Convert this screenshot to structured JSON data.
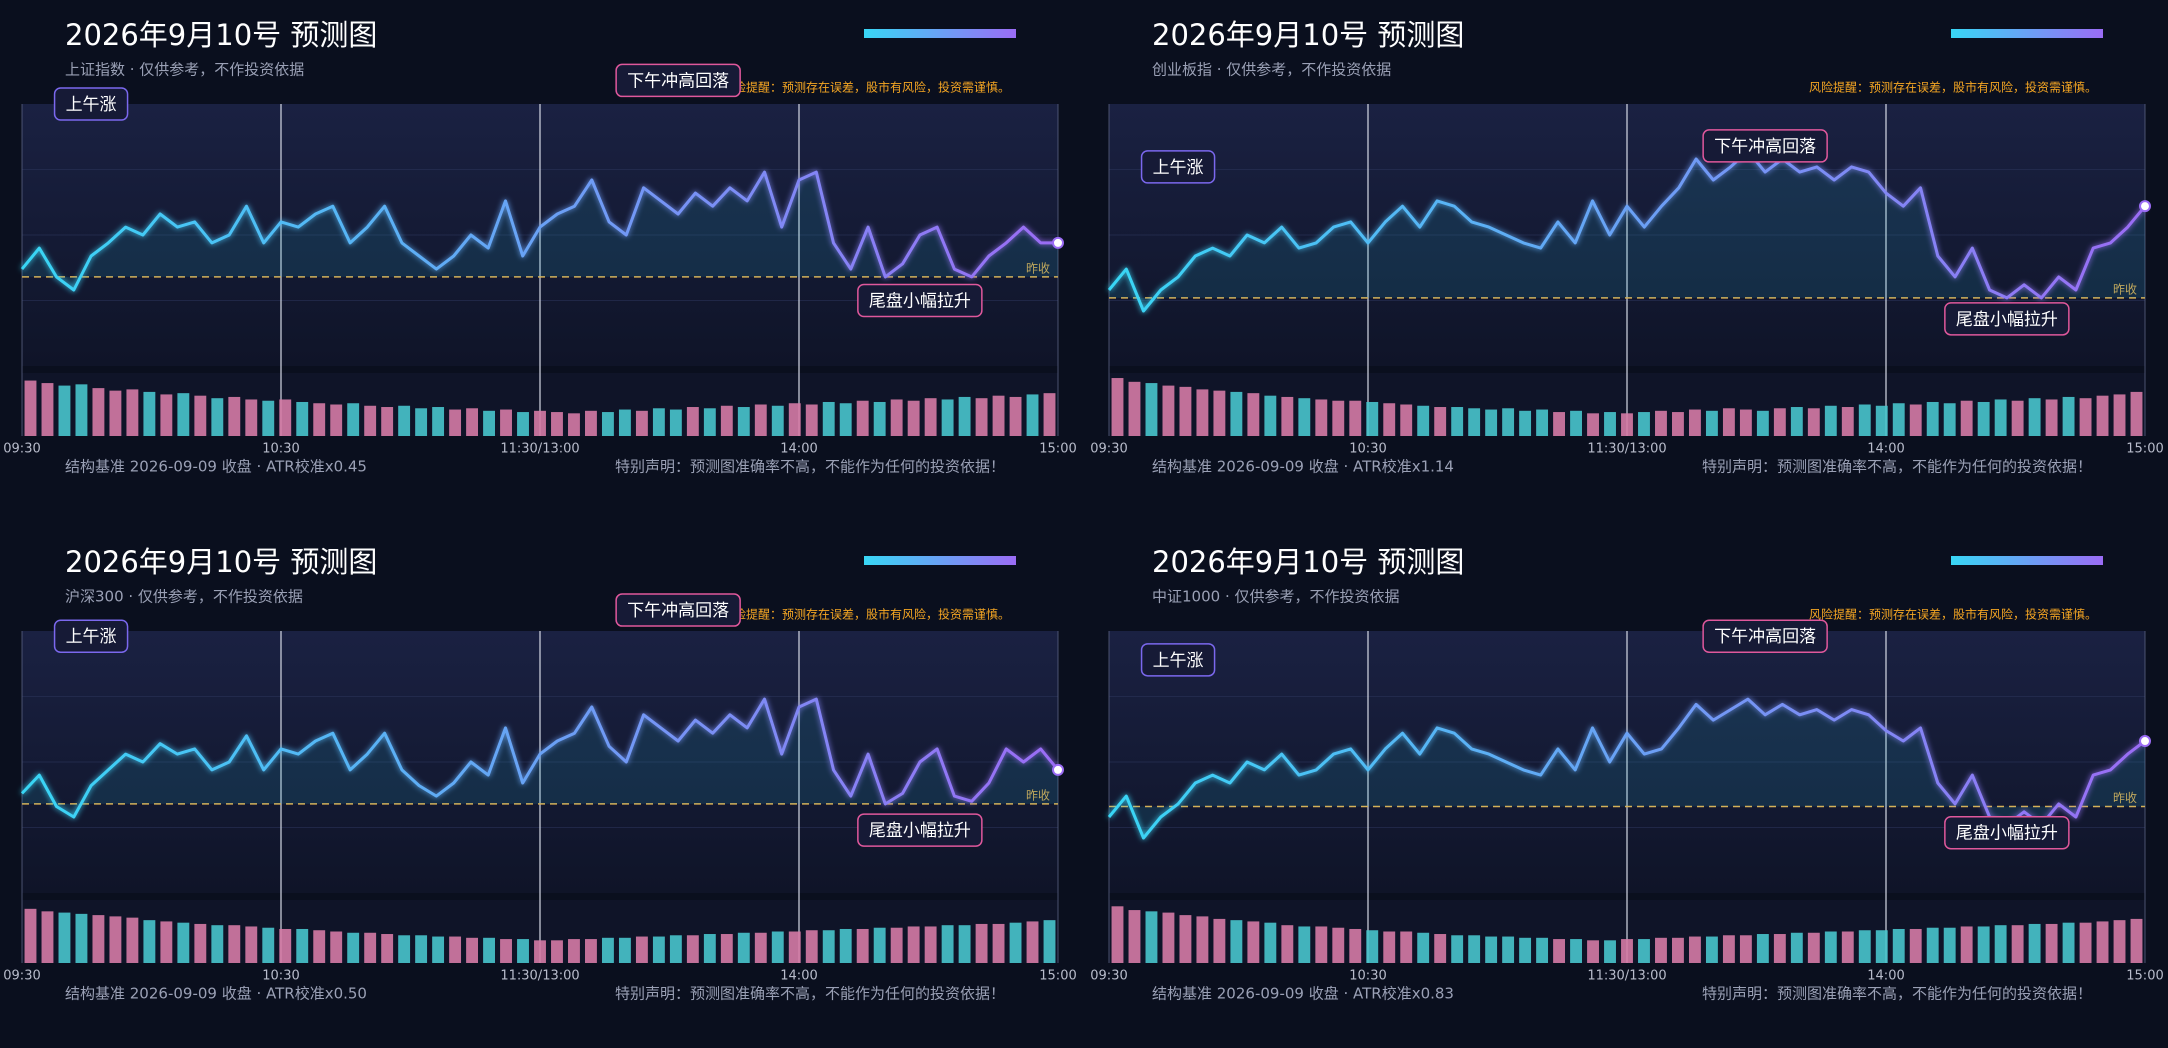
{
  "chart_data": [
    {
      "type": "line",
      "title": "2026年9月10号 预测图",
      "subtitle": "上证指数 · 仅供参考，不作投资依据",
      "risk_note": "风险提醒：预测存在误差，股市有风险，投资需谨慎。",
      "footer_left": "结构基准 2026-09-09 收盘 · ATR校准x0.45",
      "footer_right": "特别声明：预测图准确率不高，不能作为任何的投资依据！",
      "x": [
        0,
        4,
        8,
        12,
        16,
        20,
        24,
        28,
        32,
        36,
        40,
        44,
        48,
        52,
        56,
        60,
        64,
        68,
        72,
        76,
        80,
        84,
        88,
        92,
        96,
        100,
        104,
        108,
        112,
        116,
        120,
        124,
        128,
        132,
        136,
        140,
        144,
        148,
        152,
        156,
        160,
        164,
        168,
        172,
        176,
        180,
        184,
        188,
        192,
        196,
        200,
        204,
        208,
        212,
        216,
        220,
        224,
        228,
        232,
        236,
        240
      ],
      "xlim": [
        0,
        240
      ],
      "xticks": [
        {
          "value": 0,
          "label": "09:30"
        },
        {
          "value": 60,
          "label": "10:30"
        },
        {
          "value": 120,
          "label": "11:30/13:00"
        },
        {
          "value": 180,
          "label": "14:00"
        },
        {
          "value": 240,
          "label": "15:00"
        }
      ],
      "ylim": [
        0,
        100
      ],
      "values": [
        37,
        45,
        34,
        29,
        42,
        47,
        53,
        50,
        58,
        53,
        55,
        47,
        50,
        61,
        47,
        55,
        53,
        58,
        61,
        47,
        53,
        61,
        47,
        42,
        37,
        42,
        50,
        45,
        63,
        42,
        53,
        58,
        61,
        71,
        55,
        50,
        68,
        63,
        58,
        66,
        61,
        68,
        63,
        74,
        53,
        71,
        74,
        47,
        37,
        53,
        34,
        39,
        50,
        53,
        37,
        34,
        42,
        47,
        53,
        47,
        47
      ],
      "volume_ylim": [
        0,
        100
      ],
      "volume": [
        88,
        84,
        80,
        82,
        76,
        72,
        74,
        70,
        66,
        68,
        64,
        60,
        62,
        58,
        56,
        58,
        54,
        52,
        50,
        52,
        48,
        46,
        48,
        44,
        46,
        42,
        44,
        40,
        42,
        38,
        40,
        38,
        36,
        40,
        38,
        42,
        40,
        44,
        42,
        46,
        44,
        48,
        46,
        50,
        48,
        52,
        50,
        54,
        52,
        56,
        54,
        58,
        56,
        60,
        58,
        62,
        60,
        64,
        62,
        66,
        68
      ],
      "baseline": {
        "label": "昨收",
        "value": 34
      },
      "annotations": [
        {
          "text": "上午涨",
          "x": 16,
          "y": 100,
          "color": "#7b68ee"
        },
        {
          "text": "下午冲高回落",
          "x": 152,
          "y": 109,
          "color": "#e0589c"
        },
        {
          "text": "尾盘小幅拉升",
          "x": 208,
          "y": 25,
          "color": "#e0589c"
        }
      ],
      "line_colors": [
        "#38d6f5",
        "#9b6cf5"
      ],
      "volume_colors": [
        "#d57aa5",
        "#48c4cc"
      ],
      "grid": true
    },
    {
      "type": "line",
      "title": "2026年9月10号 预测图",
      "subtitle": "创业板指 · 仅供参考，不作投资依据",
      "risk_note": "风险提醒：预测存在误差，股市有风险，投资需谨慎。",
      "footer_left": "结构基准 2026-09-09 收盘 · ATR校准x1.14",
      "footer_right": "特别声明：预测图准确率不高，不能作为任何的投资依据！",
      "x": [
        0,
        4,
        8,
        12,
        16,
        20,
        24,
        28,
        32,
        36,
        40,
        44,
        48,
        52,
        56,
        60,
        64,
        68,
        72,
        76,
        80,
        84,
        88,
        92,
        96,
        100,
        104,
        108,
        112,
        116,
        120,
        124,
        128,
        132,
        136,
        140,
        144,
        148,
        152,
        156,
        160,
        164,
        168,
        172,
        176,
        180,
        184,
        188,
        192,
        196,
        200,
        204,
        208,
        212,
        216,
        220,
        224,
        228,
        232,
        236,
        240
      ],
      "xlim": [
        0,
        240
      ],
      "xticks": [
        {
          "value": 0,
          "label": "09:30"
        },
        {
          "value": 60,
          "label": "10:30"
        },
        {
          "value": 120,
          "label": "11:30/13:00"
        },
        {
          "value": 180,
          "label": "14:00"
        },
        {
          "value": 240,
          "label": "15:00"
        }
      ],
      "ylim": [
        0,
        100
      ],
      "values": [
        29,
        37,
        21,
        29,
        34,
        42,
        45,
        42,
        50,
        47,
        53,
        45,
        47,
        53,
        55,
        47,
        55,
        61,
        53,
        63,
        61,
        55,
        53,
        50,
        47,
        45,
        55,
        47,
        63,
        50,
        61,
        53,
        61,
        68,
        79,
        71,
        76,
        82,
        74,
        79,
        74,
        76,
        71,
        76,
        74,
        66,
        61,
        68,
        42,
        34,
        45,
        29,
        26,
        31,
        26,
        34,
        29,
        45,
        47,
        53,
        61
      ],
      "volume_ylim": [
        0,
        100
      ],
      "volume": [
        92,
        86,
        84,
        80,
        78,
        74,
        72,
        70,
        68,
        64,
        62,
        60,
        58,
        56,
        56,
        54,
        52,
        50,
        48,
        46,
        46,
        44,
        42,
        44,
        40,
        42,
        38,
        40,
        36,
        38,
        36,
        38,
        40,
        38,
        42,
        40,
        44,
        42,
        40,
        44,
        46,
        44,
        48,
        46,
        50,
        48,
        52,
        50,
        54,
        52,
        56,
        54,
        58,
        56,
        60,
        58,
        62,
        60,
        64,
        66,
        70
      ],
      "baseline": {
        "label": "昨收",
        "value": 26
      },
      "annotations": [
        {
          "text": "上午涨",
          "x": 16,
          "y": 76,
          "color": "#7b68ee"
        },
        {
          "text": "下午冲高回落",
          "x": 152,
          "y": 84,
          "color": "#e0589c"
        },
        {
          "text": "尾盘小幅拉升",
          "x": 208,
          "y": 18,
          "color": "#e0589c"
        }
      ],
      "line_colors": [
        "#38d6f5",
        "#9b6cf5"
      ],
      "volume_colors": [
        "#d57aa5",
        "#48c4cc"
      ],
      "grid": true
    },
    {
      "type": "line",
      "title": "2026年9月10号 预测图",
      "subtitle": "沪深300 · 仅供参考，不作投资依据",
      "risk_note": "风险提醒：预测存在误差，股市有风险，投资需谨慎。",
      "footer_left": "结构基准 2026-09-09 收盘 · ATR校准x0.50",
      "footer_right": "特别声明：预测图准确率不高，不能作为任何的投资依据！",
      "x": [
        0,
        4,
        8,
        12,
        16,
        20,
        24,
        28,
        32,
        36,
        40,
        44,
        48,
        52,
        56,
        60,
        64,
        68,
        72,
        76,
        80,
        84,
        88,
        92,
        96,
        100,
        104,
        108,
        112,
        116,
        120,
        124,
        128,
        132,
        136,
        140,
        144,
        148,
        152,
        156,
        160,
        164,
        168,
        172,
        176,
        180,
        184,
        188,
        192,
        196,
        200,
        204,
        208,
        212,
        216,
        220,
        224,
        228,
        232,
        236,
        240
      ],
      "xlim": [
        0,
        240
      ],
      "xticks": [
        {
          "value": 0,
          "label": "09:30"
        },
        {
          "value": 60,
          "label": "10:30"
        },
        {
          "value": 120,
          "label": "11:30/13:00"
        },
        {
          "value": 180,
          "label": "14:00"
        },
        {
          "value": 240,
          "label": "15:00"
        }
      ],
      "ylim": [
        0,
        100
      ],
      "values": [
        38,
        45,
        33,
        29,
        41,
        47,
        53,
        50,
        57,
        53,
        55,
        47,
        50,
        60,
        47,
        55,
        53,
        58,
        61,
        47,
        53,
        61,
        47,
        41,
        37,
        42,
        50,
        45,
        63,
        42,
        53,
        58,
        61,
        71,
        56,
        50,
        68,
        63,
        58,
        66,
        61,
        68,
        63,
        74,
        53,
        71,
        74,
        47,
        37,
        53,
        34,
        38,
        50,
        55,
        37,
        35,
        42,
        55,
        50,
        55,
        47
      ],
      "volume_ylim": [
        0,
        100
      ],
      "volume": [
        86,
        82,
        80,
        78,
        76,
        74,
        72,
        68,
        66,
        64,
        62,
        60,
        60,
        58,
        56,
        54,
        54,
        52,
        50,
        48,
        48,
        46,
        44,
        44,
        42,
        42,
        40,
        40,
        38,
        38,
        36,
        36,
        38,
        38,
        40,
        40,
        42,
        42,
        44,
        44,
        46,
        46,
        48,
        48,
        50,
        50,
        52,
        52,
        54,
        54,
        56,
        56,
        58,
        58,
        60,
        60,
        62,
        62,
        64,
        66,
        68
      ],
      "baseline": {
        "label": "昨收",
        "value": 34
      },
      "annotations": [
        {
          "text": "上午涨",
          "x": 16,
          "y": 98,
          "color": "#7b68ee"
        },
        {
          "text": "下午冲高回落",
          "x": 152,
          "y": 108,
          "color": "#e0589c"
        },
        {
          "text": "尾盘小幅拉升",
          "x": 208,
          "y": 24,
          "color": "#e0589c"
        }
      ],
      "line_colors": [
        "#38d6f5",
        "#9b6cf5"
      ],
      "volume_colors": [
        "#d57aa5",
        "#48c4cc"
      ],
      "grid": true
    },
    {
      "type": "line",
      "title": "2026年9月10号 预测图",
      "subtitle": "中证1000 · 仅供参考，不作投资依据",
      "risk_note": "风险提醒：预测存在误差，股市有风险，投资需谨慎。",
      "footer_left": "结构基准 2026-09-09 收盘 · ATR校准x0.83",
      "footer_right": "特别声明：预测图准确率不高，不能作为任何的投资依据！",
      "x": [
        0,
        4,
        8,
        12,
        16,
        20,
        24,
        28,
        32,
        36,
        40,
        44,
        48,
        52,
        56,
        60,
        64,
        68,
        72,
        76,
        80,
        84,
        88,
        92,
        96,
        100,
        104,
        108,
        112,
        116,
        120,
        124,
        128,
        132,
        136,
        140,
        144,
        148,
        152,
        156,
        160,
        164,
        168,
        172,
        176,
        180,
        184,
        188,
        192,
        196,
        200,
        204,
        208,
        212,
        216,
        220,
        224,
        228,
        232,
        236,
        240
      ],
      "xlim": [
        0,
        240
      ],
      "xticks": [
        {
          "value": 0,
          "label": "09:30"
        },
        {
          "value": 60,
          "label": "10:30"
        },
        {
          "value": 120,
          "label": "11:30/13:00"
        },
        {
          "value": 180,
          "label": "14:00"
        },
        {
          "value": 240,
          "label": "15:00"
        }
      ],
      "ylim": [
        0,
        100
      ],
      "values": [
        29,
        37,
        21,
        29,
        34,
        42,
        45,
        42,
        50,
        47,
        53,
        45,
        47,
        53,
        55,
        47,
        55,
        61,
        53,
        63,
        61,
        55,
        53,
        50,
        47,
        45,
        55,
        47,
        63,
        50,
        61,
        53,
        55,
        63,
        72,
        66,
        70,
        74,
        68,
        72,
        68,
        70,
        66,
        70,
        68,
        62,
        58,
        63,
        42,
        34,
        45,
        29,
        26,
        31,
        26,
        34,
        29,
        45,
        47,
        53,
        58
      ],
      "volume_ylim": [
        0,
        100
      ],
      "volume": [
        90,
        84,
        82,
        80,
        76,
        74,
        70,
        68,
        66,
        64,
        60,
        58,
        58,
        56,
        54,
        52,
        50,
        50,
        48,
        46,
        44,
        44,
        42,
        42,
        40,
        40,
        38,
        38,
        36,
        36,
        38,
        38,
        40,
        40,
        42,
        42,
        44,
        44,
        46,
        46,
        48,
        48,
        50,
        50,
        52,
        52,
        54,
        54,
        56,
        56,
        58,
        58,
        60,
        60,
        62,
        62,
        64,
        64,
        66,
        68,
        70
      ],
      "baseline": {
        "label": "昨收",
        "value": 33
      },
      "annotations": [
        {
          "text": "上午涨",
          "x": 16,
          "y": 89,
          "color": "#7b68ee"
        },
        {
          "text": "下午冲高回落",
          "x": 152,
          "y": 98,
          "color": "#e0589c"
        },
        {
          "text": "尾盘小幅拉升",
          "x": 208,
          "y": 23,
          "color": "#e0589c"
        }
      ],
      "line_colors": [
        "#38d6f5",
        "#9b6cf5"
      ],
      "volume_colors": [
        "#d57aa5",
        "#48c4cc"
      ],
      "grid": true
    }
  ]
}
